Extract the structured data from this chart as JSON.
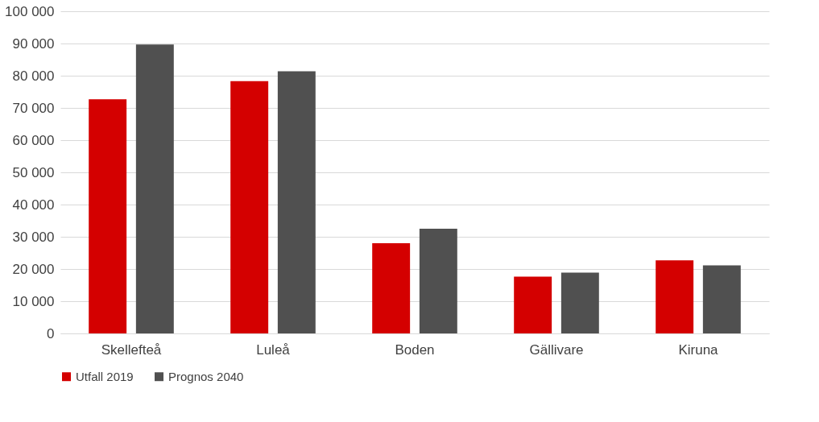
{
  "chart_data": {
    "type": "bar",
    "categories": [
      "Skellefteå",
      "Luleå",
      "Boden",
      "Gällivare",
      "Kiruna"
    ],
    "series": [
      {
        "name": "Utfall 2019",
        "color": "#d40000",
        "values": [
          72700,
          78300,
          28000,
          17600,
          22700
        ]
      },
      {
        "name": "Prognos 2040",
        "color": "#505050",
        "values": [
          89700,
          81400,
          32500,
          18900,
          21100
        ]
      }
    ],
    "ylim": [
      0,
      100000
    ],
    "yticks": [
      {
        "value": 0,
        "label": "0"
      },
      {
        "value": 10000,
        "label": "10 000"
      },
      {
        "value": 20000,
        "label": "20 000"
      },
      {
        "value": 30000,
        "label": "30 000"
      },
      {
        "value": 40000,
        "label": "40 000"
      },
      {
        "value": 50000,
        "label": "50 000"
      },
      {
        "value": 60000,
        "label": "60 000"
      },
      {
        "value": 70000,
        "label": "70 000"
      },
      {
        "value": 80000,
        "label": "80 000"
      },
      {
        "value": 90000,
        "label": "90 000"
      },
      {
        "value": 100000,
        "label": "100 000"
      }
    ],
    "grid": "y",
    "legend": "bottom"
  }
}
